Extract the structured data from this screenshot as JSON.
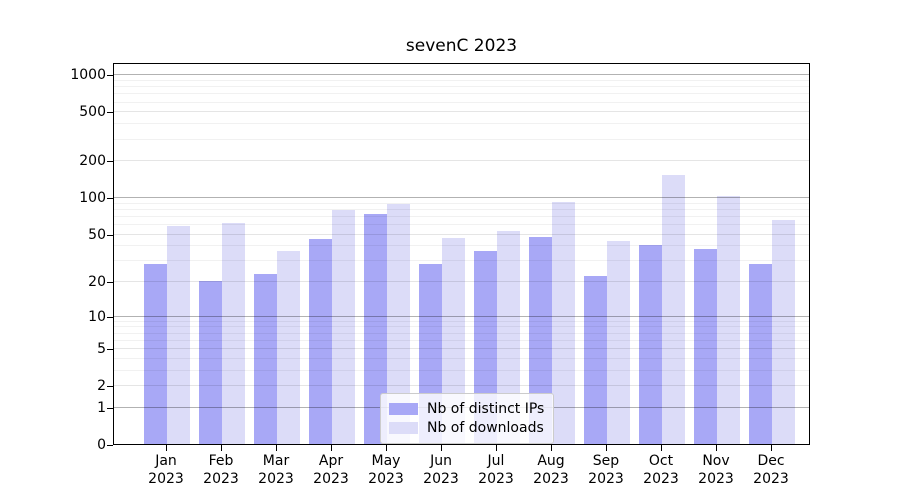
{
  "chart_data": {
    "type": "bar",
    "title": "sevenC 2023",
    "categories": [
      "Jan",
      "Feb",
      "Mar",
      "Apr",
      "May",
      "Jun",
      "Jul",
      "Aug",
      "Sep",
      "Oct",
      "Nov",
      "Dec"
    ],
    "year_label": "2023",
    "series": [
      {
        "name": "Nb of distinct IPs",
        "color": "#a8a8f6",
        "values": [
          28,
          20,
          23,
          45,
          72,
          28,
          36,
          47,
          22,
          40,
          37,
          28
        ]
      },
      {
        "name": "Nb of downloads",
        "color": "#dcdcf8",
        "values": [
          58,
          61,
          36,
          78,
          87,
          46,
          52,
          91,
          43,
          152,
          101,
          65
        ]
      }
    ],
    "xlabel": "",
    "ylabel": "",
    "yticks": [
      0,
      1,
      2,
      5,
      10,
      20,
      50,
      100,
      200,
      500,
      1000
    ],
    "yscale": "log1p",
    "ylim": [
      0,
      1210
    ],
    "grid": true,
    "grid_over_bars": true,
    "legend_position": "lower-center-inside"
  },
  "colors": {
    "spine": "#000000",
    "legend_border": "#cccccc",
    "background": "#ffffff"
  }
}
